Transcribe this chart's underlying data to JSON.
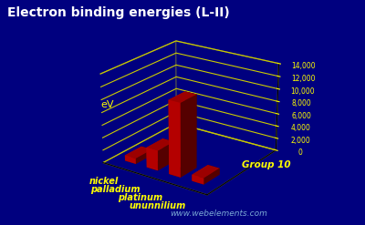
{
  "title": "Electron binding energies (L-II)",
  "elements": [
    "nickel",
    "palladium",
    "platinum",
    "ununnilium"
  ],
  "values": [
    870,
    3173,
    11563,
    1000
  ],
  "ylabel": "eV",
  "xlabel": "Group 10",
  "ylim": [
    0,
    14000
  ],
  "yticks": [
    0,
    2000,
    4000,
    6000,
    8000,
    10000,
    12000,
    14000
  ],
  "ytick_labels": [
    "0",
    "2,000",
    "4,000",
    "6,000",
    "8,000",
    "10,000",
    "12,000",
    "14,000"
  ],
  "bar_color": "#cc0000",
  "background_color": "#00007f",
  "grid_color": "#cccc00",
  "text_color": "#ffff00",
  "title_color": "#ffffff",
  "watermark": "www.webelements.com",
  "title_fontsize": 10,
  "label_fontsize": 8,
  "pane_color": [
    0.0,
    0.0,
    0.5,
    1.0
  ]
}
